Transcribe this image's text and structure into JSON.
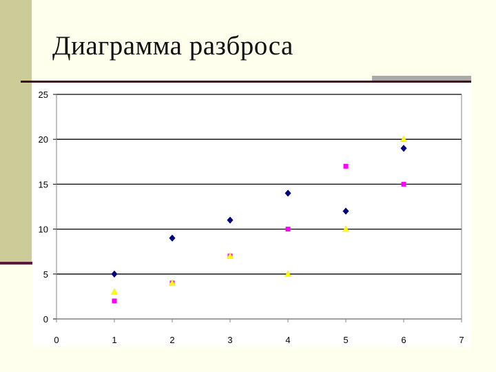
{
  "slide": {
    "title": "Диаграмма разброса"
  },
  "colors": {
    "background": "#FFFFEE",
    "side_bar": "#CCCC99",
    "accent_line": "#3A0F22",
    "accent_block": "#AAAAAA"
  },
  "chart_data": {
    "type": "scatter",
    "title": "",
    "xlabel": "",
    "ylabel": "",
    "xlim": [
      0,
      7
    ],
    "ylim": [
      0,
      25
    ],
    "x_ticks": [
      "0",
      "1",
      "2",
      "3",
      "4",
      "5",
      "6",
      "7"
    ],
    "y_ticks": [
      "0",
      "5",
      "10",
      "15",
      "20",
      "25"
    ],
    "grid": "horizontal",
    "legend": "none",
    "series": [
      {
        "marker": "diamond",
        "color": "#000080",
        "x": [
          1,
          2,
          3,
          4,
          5,
          6
        ],
        "y": [
          5,
          9,
          11,
          14,
          12,
          19
        ]
      },
      {
        "marker": "square",
        "color": "#FF00FF",
        "x": [
          1,
          2,
          3,
          4,
          5,
          6
        ],
        "y": [
          2,
          4,
          7,
          10,
          17,
          15
        ]
      },
      {
        "marker": "triangle",
        "color": "#FFFF00",
        "x": [
          1,
          2,
          3,
          4,
          5,
          6
        ],
        "y": [
          3,
          4,
          7,
          5,
          10,
          20
        ]
      }
    ]
  }
}
